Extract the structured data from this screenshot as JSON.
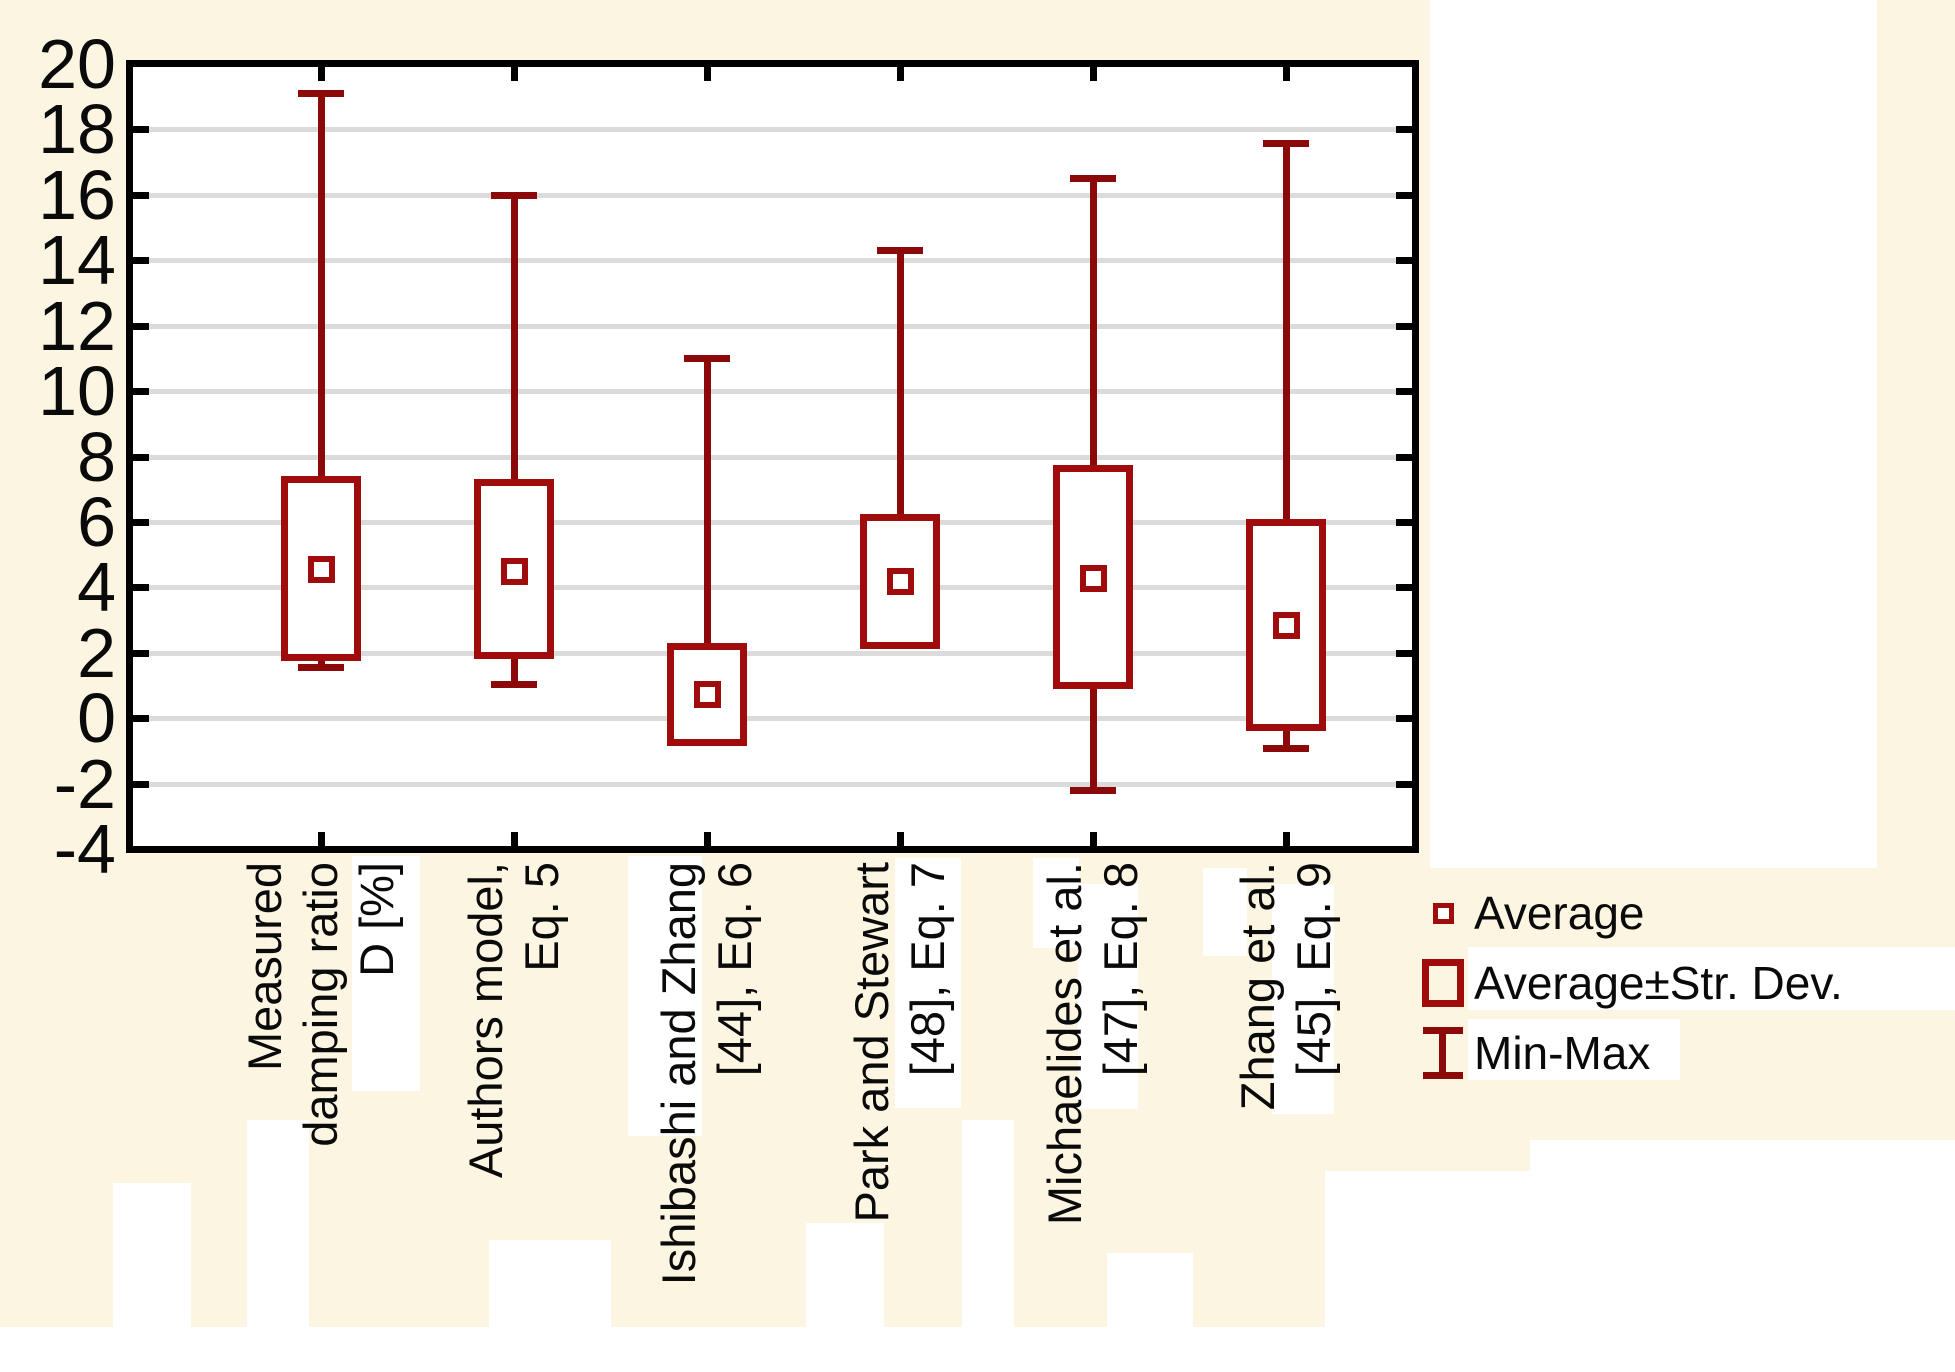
{
  "colors": {
    "box_red": "#A00B0B",
    "whisker_red": "#8B0909",
    "background_cream": "#FBF5E2",
    "plot_background": "#FFFFFF",
    "grid_gray": "#DBDBDB",
    "axis_black": "#000000",
    "text_black": "#0A0A0A"
  },
  "y_axis": {
    "tick_labels": [
      "20",
      "18",
      "16",
      "14",
      "12",
      "10",
      "8",
      "6",
      "4",
      "2",
      "0",
      "-2",
      "-4"
    ],
    "min": -4,
    "max": 20,
    "step": 2
  },
  "legend": {
    "items": [
      {
        "icon": "average-marker-icon",
        "label": "Average"
      },
      {
        "icon": "std-dev-box-icon",
        "label": "Average±Str. Dev."
      },
      {
        "icon": "min-max-whisker-icon",
        "label": "Min-Max"
      }
    ]
  },
  "chart_data": {
    "type": "box",
    "title": "",
    "xlabel": "",
    "ylabel": "",
    "ylim": [
      -4,
      20
    ],
    "grid": true,
    "legend_position": "bottom-right",
    "series": [
      {
        "label_lines": [
          "Measured",
          "damping ratio",
          "D [%]"
        ],
        "average": 4.55,
        "avg_plus_std": 7.4,
        "avg_minus_std": 1.75,
        "min": 1.55,
        "max": 19.1
      },
      {
        "label_lines": [
          "Authors model,",
          "Eq. 5"
        ],
        "average": 4.5,
        "avg_plus_std": 7.3,
        "avg_minus_std": 1.8,
        "min": 1.05,
        "max": 16.0
      },
      {
        "label_lines": [
          "Ishibashi and Zhang",
          "[44], Eq. 6"
        ],
        "average": 0.75,
        "avg_plus_std": 2.3,
        "avg_minus_std": -0.85,
        "min": -0.85,
        "max": 11.0
      },
      {
        "label_lines": [
          "Park and Stewart",
          "[48], Eq. 7"
        ],
        "average": 4.2,
        "avg_plus_std": 6.25,
        "avg_minus_std": 2.1,
        "min": 2.1,
        "max": 14.3
      },
      {
        "label_lines": [
          "Michaelides et al.",
          "[47], Eq. 8"
        ],
        "average": 4.3,
        "avg_plus_std": 7.75,
        "avg_minus_std": 0.9,
        "min": -2.2,
        "max": 16.5
      },
      {
        "label_lines": [
          "Zhang et al.",
          "[45], Eq. 9"
        ],
        "average": 2.85,
        "avg_plus_std": 6.1,
        "avg_minus_std": -0.4,
        "min": -0.9,
        "max": 17.6
      }
    ]
  }
}
